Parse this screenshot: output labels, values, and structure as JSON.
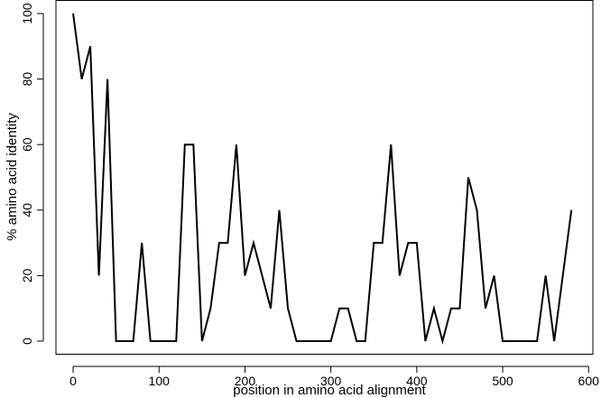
{
  "chart_data": {
    "type": "line",
    "title": "",
    "xlabel": "position in amino acid alignment",
    "ylabel": "% amino acid identity",
    "xlim": [
      -20,
      605
    ],
    "ylim": [
      -4,
      104
    ],
    "x_ticks": [
      0,
      100,
      200,
      300,
      400,
      500,
      600
    ],
    "y_ticks": [
      0,
      20,
      40,
      60,
      80,
      100
    ],
    "grid": false,
    "legend": "none",
    "series": [
      {
        "x": [
          0,
          10,
          20,
          30,
          40,
          50,
          60,
          70,
          80,
          90,
          100,
          110,
          120,
          130,
          140,
          150,
          160,
          170,
          180,
          190,
          200,
          210,
          220,
          230,
          240,
          250,
          260,
          270,
          280,
          290,
          300,
          310,
          320,
          330,
          340,
          350,
          360,
          370,
          380,
          390,
          400,
          410,
          420,
          430,
          440,
          450,
          460,
          470,
          480,
          490,
          500,
          510,
          520,
          530,
          540,
          550,
          560,
          570,
          580
        ],
        "values": [
          100,
          80,
          90,
          20,
          80,
          0,
          0,
          0,
          30,
          0,
          0,
          0,
          0,
          60,
          60,
          0,
          10,
          30,
          30,
          60,
          20,
          30,
          20,
          10,
          40,
          10,
          0,
          0,
          0,
          0,
          0,
          10,
          10,
          0,
          0,
          30,
          30,
          60,
          20,
          30,
          30,
          0,
          10,
          0,
          10,
          10,
          50,
          40,
          10,
          20,
          0,
          0,
          0,
          0,
          0,
          20,
          0,
          20,
          40
        ]
      }
    ]
  }
}
